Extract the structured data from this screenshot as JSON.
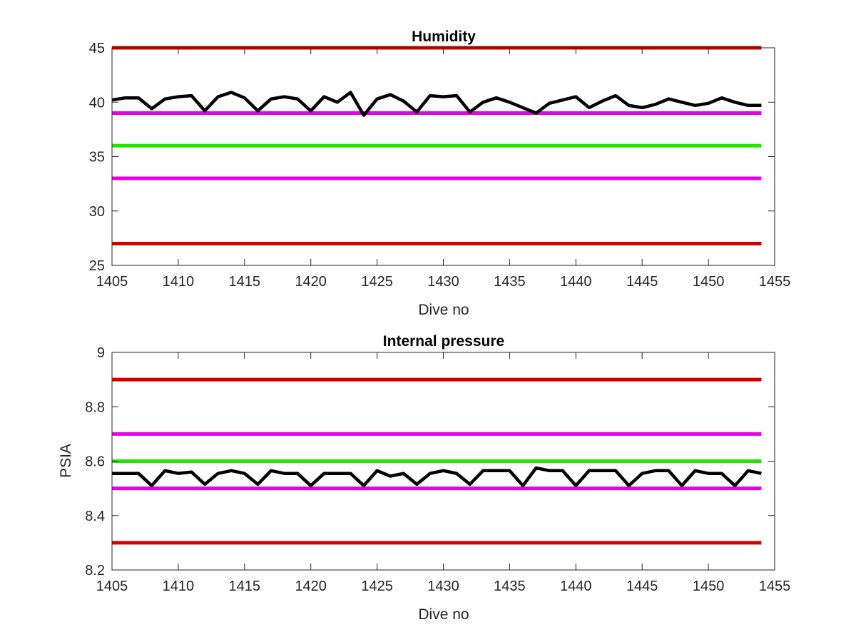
{
  "chart_data": [
    {
      "type": "line",
      "title": "Humidity",
      "xlabel": "Dive no",
      "ylabel": "",
      "xlim": [
        1405,
        1455
      ],
      "ylim": [
        25,
        45
      ],
      "xticks": [
        "1405",
        "1410",
        "1415",
        "1420",
        "1425",
        "1430",
        "1435",
        "1440",
        "1445",
        "1450",
        "1455"
      ],
      "yticks": [
        "25",
        "30",
        "35",
        "40",
        "45"
      ],
      "grid": false,
      "reference_lines": [
        {
          "y": 45,
          "color": "#d40000"
        },
        {
          "y": 39,
          "color": "#e600e6"
        },
        {
          "y": 36,
          "color": "#22e600"
        },
        {
          "y": 33,
          "color": "#e600e6"
        },
        {
          "y": 27,
          "color": "#d40000"
        }
      ],
      "series": [
        {
          "color": "#000000",
          "x": [
            1405,
            1406,
            1407,
            1408,
            1409,
            1410,
            1411,
            1412,
            1413,
            1414,
            1415,
            1416,
            1417,
            1418,
            1419,
            1420,
            1421,
            1422,
            1423,
            1424,
            1425,
            1426,
            1427,
            1428,
            1429,
            1430,
            1431,
            1432,
            1433,
            1434,
            1435,
            1436,
            1437,
            1438,
            1439,
            1440,
            1441,
            1442,
            1443,
            1444,
            1445,
            1446,
            1447,
            1448,
            1449,
            1450,
            1451,
            1452,
            1453,
            1454
          ],
          "y": [
            40.2,
            40.4,
            40.4,
            39.4,
            40.3,
            40.5,
            40.6,
            39.2,
            40.5,
            40.9,
            40.4,
            39.2,
            40.3,
            40.5,
            40.3,
            39.2,
            40.5,
            40.0,
            40.9,
            38.8,
            40.3,
            40.7,
            40.1,
            39.1,
            40.6,
            40.5,
            40.6,
            39.1,
            40.0,
            40.4,
            40.0,
            39.5,
            39.0,
            39.9,
            40.2,
            40.5,
            39.5,
            40.1,
            40.6,
            39.7,
            39.5,
            39.8,
            40.3,
            40.0,
            39.7,
            39.9,
            40.4,
            40.0,
            39.7,
            39.7
          ]
        }
      ]
    },
    {
      "type": "line",
      "title": "Internal pressure",
      "xlabel": "Dive no",
      "ylabel": "PSIA",
      "xlim": [
        1405,
        1455
      ],
      "ylim": [
        8.2,
        9.0
      ],
      "xticks": [
        "1405",
        "1410",
        "1415",
        "1420",
        "1425",
        "1430",
        "1435",
        "1440",
        "1445",
        "1450",
        "1455"
      ],
      "yticks": [
        "8.2",
        "8.4",
        "8.6",
        "8.8",
        "9"
      ],
      "grid": false,
      "reference_lines": [
        {
          "y": 8.9,
          "color": "#d40000"
        },
        {
          "y": 8.7,
          "color": "#e600e6"
        },
        {
          "y": 8.6,
          "color": "#22e600"
        },
        {
          "y": 8.5,
          "color": "#e600e6"
        },
        {
          "y": 8.3,
          "color": "#d40000"
        }
      ],
      "series": [
        {
          "color": "#000000",
          "x": [
            1405,
            1406,
            1407,
            1408,
            1409,
            1410,
            1411,
            1412,
            1413,
            1414,
            1415,
            1416,
            1417,
            1418,
            1419,
            1420,
            1421,
            1422,
            1423,
            1424,
            1425,
            1426,
            1427,
            1428,
            1429,
            1430,
            1431,
            1432,
            1433,
            1434,
            1435,
            1436,
            1437,
            1438,
            1439,
            1440,
            1441,
            1442,
            1443,
            1444,
            1445,
            1446,
            1447,
            1448,
            1449,
            1450,
            1451,
            1452,
            1453,
            1454
          ],
          "y": [
            8.555,
            8.555,
            8.555,
            8.51,
            8.565,
            8.555,
            8.56,
            8.515,
            8.555,
            8.565,
            8.555,
            8.515,
            8.565,
            8.555,
            8.555,
            8.51,
            8.555,
            8.555,
            8.555,
            8.51,
            8.565,
            8.545,
            8.555,
            8.515,
            8.555,
            8.565,
            8.555,
            8.515,
            8.565,
            8.565,
            8.565,
            8.51,
            8.575,
            8.565,
            8.565,
            8.51,
            8.565,
            8.565,
            8.565,
            8.51,
            8.555,
            8.565,
            8.565,
            8.51,
            8.565,
            8.555,
            8.555,
            8.51,
            8.565,
            8.555
          ]
        }
      ]
    }
  ]
}
